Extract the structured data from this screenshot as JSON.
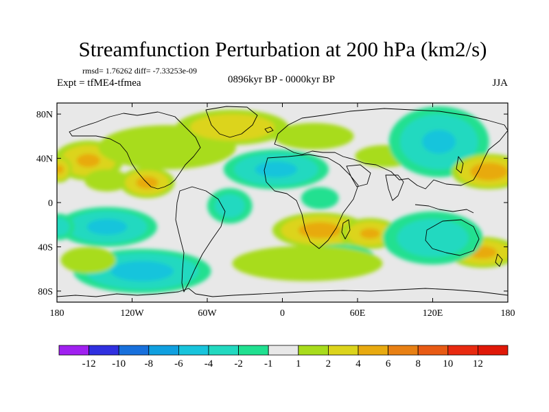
{
  "chart_data": {
    "type": "heatmap",
    "title": "Streamfunction Perturbation at 200 hPa (km2/s)",
    "stats_text": "rmsd= 1.76262  diff= -7.33253e-09",
    "experiment": "Expt = tfME4-tfmea",
    "period": "0896kyr BP - 0000kyr BP",
    "season": "JJA",
    "xlim": [
      -180,
      180
    ],
    "ylim": [
      -90,
      90
    ],
    "x_ticks": [
      {
        "value": -180,
        "label": "180"
      },
      {
        "value": -120,
        "label": "120W"
      },
      {
        "value": -60,
        "label": "60W"
      },
      {
        "value": 0,
        "label": "0"
      },
      {
        "value": 60,
        "label": "60E"
      },
      {
        "value": 120,
        "label": "120E"
      },
      {
        "value": 180,
        "label": "180"
      }
    ],
    "y_ticks": [
      {
        "value": 80,
        "label": "80N"
      },
      {
        "value": 40,
        "label": "40N"
      },
      {
        "value": 0,
        "label": "0"
      },
      {
        "value": -40,
        "label": "40S"
      },
      {
        "value": -80,
        "label": "80S"
      }
    ],
    "colorbar": {
      "levels": [
        "-12",
        "-10",
        "-8",
        "-6",
        "-4",
        "-2",
        "-1",
        "1",
        "2",
        "4",
        "6",
        "8",
        "10",
        "12"
      ],
      "colors": [
        "#a020f0",
        "#3030e0",
        "#1870dc",
        "#10a0e0",
        "#18c4dc",
        "#22d9c0",
        "#20e090",
        "#e8e8e8",
        "#a8dc1c",
        "#dcd41c",
        "#e8aa10",
        "#e88014",
        "#e85a14",
        "#e82a10",
        "#e01808"
      ]
    },
    "anomalies": [
      {
        "lon": -155,
        "lat": 38,
        "rx": 28,
        "ry": 18,
        "value": 4
      },
      {
        "lon": -178,
        "lat": 30,
        "rx": 10,
        "ry": 12,
        "value": 4
      },
      {
        "lon": -140,
        "lat": 20,
        "rx": 18,
        "ry": 10,
        "value": 1.5
      },
      {
        "lon": -108,
        "lat": 18,
        "rx": 22,
        "ry": 14,
        "value": 4.5
      },
      {
        "lon": -92,
        "lat": 50,
        "rx": 55,
        "ry": 20,
        "value": 1.5
      },
      {
        "lon": -40,
        "lat": 68,
        "rx": 45,
        "ry": 16,
        "value": 3.5
      },
      {
        "lon": -5,
        "lat": 30,
        "rx": 42,
        "ry": 18,
        "value": -4.5
      },
      {
        "lon": -42,
        "lat": -3,
        "rx": 18,
        "ry": 16,
        "value": -2.5
      },
      {
        "lon": 25,
        "lat": 60,
        "rx": 32,
        "ry": 12,
        "value": 1.5
      },
      {
        "lon": 82,
        "lat": 42,
        "rx": 24,
        "ry": 10,
        "value": 1.5
      },
      {
        "lon": 125,
        "lat": 55,
        "rx": 40,
        "ry": 32,
        "value": -4
      },
      {
        "lon": 165,
        "lat": 28,
        "rx": 30,
        "ry": 16,
        "value": 5.5
      },
      {
        "lon": -140,
        "lat": -22,
        "rx": 40,
        "ry": 18,
        "value": -4.5
      },
      {
        "lon": -178,
        "lat": -22,
        "rx": 12,
        "ry": 12,
        "value": -2.5
      },
      {
        "lon": -112,
        "lat": -62,
        "rx": 55,
        "ry": 20,
        "value": -5
      },
      {
        "lon": -155,
        "lat": -52,
        "rx": 22,
        "ry": 12,
        "value": 1.5
      },
      {
        "lon": 30,
        "lat": -25,
        "rx": 38,
        "ry": 16,
        "value": 5
      },
      {
        "lon": 70,
        "lat": -28,
        "rx": 24,
        "ry": 14,
        "value": 4
      },
      {
        "lon": 45,
        "lat": -48,
        "rx": 28,
        "ry": 10,
        "value": -3
      },
      {
        "lon": 20,
        "lat": -55,
        "rx": 60,
        "ry": 16,
        "value": 1.5
      },
      {
        "lon": 160,
        "lat": -45,
        "rx": 28,
        "ry": 14,
        "value": 4.5
      },
      {
        "lon": 120,
        "lat": -32,
        "rx": 40,
        "ry": 24,
        "value": -3
      },
      {
        "lon": 30,
        "lat": 4,
        "rx": 15,
        "ry": 10,
        "value": -1.5
      }
    ]
  }
}
